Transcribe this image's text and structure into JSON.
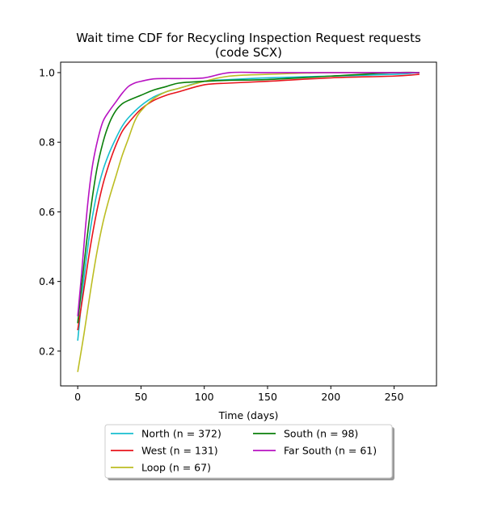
{
  "chart_data": {
    "type": "line",
    "title": "Wait time CDF for Recycling Inspection Request  requests",
    "subtitle": "(code SCX)",
    "xlabel": "Time (days)",
    "ylabel": "",
    "xlim": [
      -13.5,
      283.5
    ],
    "ylim": [
      0.1,
      1.03
    ],
    "xticks": [
      0,
      50,
      100,
      150,
      200,
      250
    ],
    "xtick_labels": [
      "0",
      "50",
      "100",
      "150",
      "200",
      "250"
    ],
    "yticks": [
      0.2,
      0.4,
      0.6,
      0.8,
      1.0
    ],
    "ytick_labels": [
      "0.2",
      "0.4",
      "0.6",
      "0.8",
      "1.0"
    ],
    "grid": false,
    "legend_position": "below plot, two columns",
    "series": [
      {
        "name": "North (n = 372)",
        "color": "#17becf",
        "x": [
          0,
          5,
          10,
          15,
          20,
          25,
          30,
          35,
          40,
          50,
          60,
          70,
          80,
          100,
          120,
          150,
          200,
          250,
          270
        ],
        "y": [
          0.23,
          0.41,
          0.55,
          0.65,
          0.72,
          0.77,
          0.81,
          0.845,
          0.87,
          0.905,
          0.93,
          0.945,
          0.955,
          0.975,
          0.98,
          0.985,
          0.99,
          0.995,
          1.0
        ]
      },
      {
        "name": "West (n = 131)",
        "color": "#e8141c",
        "x": [
          0,
          5,
          10,
          15,
          20,
          25,
          30,
          35,
          40,
          50,
          60,
          70,
          80,
          100,
          120,
          150,
          200,
          250,
          270
        ],
        "y": [
          0.26,
          0.38,
          0.5,
          0.6,
          0.68,
          0.74,
          0.79,
          0.83,
          0.855,
          0.895,
          0.92,
          0.935,
          0.945,
          0.965,
          0.97,
          0.975,
          0.985,
          0.99,
          0.995
        ]
      },
      {
        "name": "Loop (n = 67)",
        "color": "#bcbd22",
        "x": [
          0,
          5,
          10,
          15,
          20,
          25,
          30,
          35,
          40,
          45,
          50,
          60,
          70,
          80,
          100,
          120,
          150,
          200,
          250,
          270
        ],
        "y": [
          0.14,
          0.25,
          0.37,
          0.48,
          0.57,
          0.64,
          0.7,
          0.76,
          0.81,
          0.86,
          0.89,
          0.925,
          0.945,
          0.955,
          0.975,
          0.99,
          0.995,
          1.0,
          1.0,
          1.0
        ]
      },
      {
        "name": "South (n = 98)",
        "color": "#0a7f0a",
        "x": [
          0,
          5,
          10,
          15,
          20,
          25,
          30,
          35,
          40,
          50,
          60,
          70,
          80,
          100,
          120,
          150,
          200,
          250,
          270
        ],
        "y": [
          0.28,
          0.45,
          0.6,
          0.72,
          0.8,
          0.855,
          0.89,
          0.91,
          0.92,
          0.935,
          0.95,
          0.96,
          0.97,
          0.975,
          0.978,
          0.98,
          0.99,
          1.0,
          1.0
        ]
      },
      {
        "name": "Far South (n = 61)",
        "color": "#b812c2",
        "x": [
          0,
          3,
          6,
          9,
          12,
          16,
          20,
          25,
          30,
          35,
          40,
          45,
          50,
          60,
          70,
          80,
          100,
          120,
          150,
          200,
          250,
          270
        ],
        "y": [
          0.3,
          0.42,
          0.55,
          0.66,
          0.74,
          0.81,
          0.86,
          0.89,
          0.915,
          0.94,
          0.96,
          0.97,
          0.975,
          0.982,
          0.983,
          0.983,
          0.985,
          1.0,
          1.0,
          1.0,
          1.0,
          1.0
        ]
      }
    ]
  }
}
